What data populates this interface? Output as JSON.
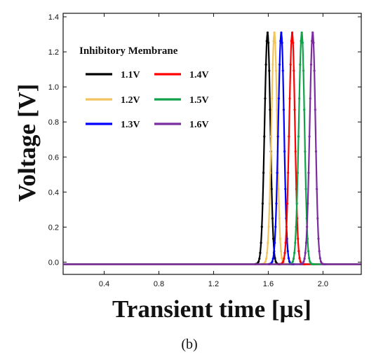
{
  "caption": "(b)",
  "chart_data": {
    "type": "line",
    "title": "",
    "legend_title": "Inhibitory Membrane",
    "legend_position": "top-left",
    "xlabel": "Transient time [µs]",
    "ylabel": "Voltage [V]",
    "xlim": [
      0.1,
      2.28
    ],
    "ylim": [
      -0.07,
      1.42
    ],
    "xticks": [
      0.4,
      0.8,
      1.2,
      1.6,
      2.0
    ],
    "yticks": [
      0.0,
      0.2,
      0.4,
      0.6,
      0.8,
      1.0,
      1.2,
      1.4
    ],
    "xtick_labels": [
      "0.4",
      "0.8",
      "1.2",
      "1.6",
      "2.0"
    ],
    "ytick_labels": [
      "0.0",
      "0.2",
      "0.4",
      "0.6",
      "0.8",
      "1.0",
      "1.2",
      "1.4"
    ],
    "grid": false,
    "series": [
      {
        "name": "1.1V",
        "color": "#000000",
        "spike_time": 1.595,
        "peak": 1.31
      },
      {
        "name": "1.2V",
        "color": "#F2C45E",
        "spike_time": 1.645,
        "peak": 1.31
      },
      {
        "name": "1.3V",
        "color": "#0000FF",
        "spike_time": 1.695,
        "peak": 1.31
      },
      {
        "name": "1.4V",
        "color": "#FF0000",
        "spike_time": 1.775,
        "peak": 1.31
      },
      {
        "name": "1.5V",
        "color": "#12A34A",
        "spike_time": 1.845,
        "peak": 1.31
      },
      {
        "name": "1.6V",
        "color": "#7B2C9E",
        "spike_time": 1.925,
        "peak": 1.31
      }
    ]
  }
}
